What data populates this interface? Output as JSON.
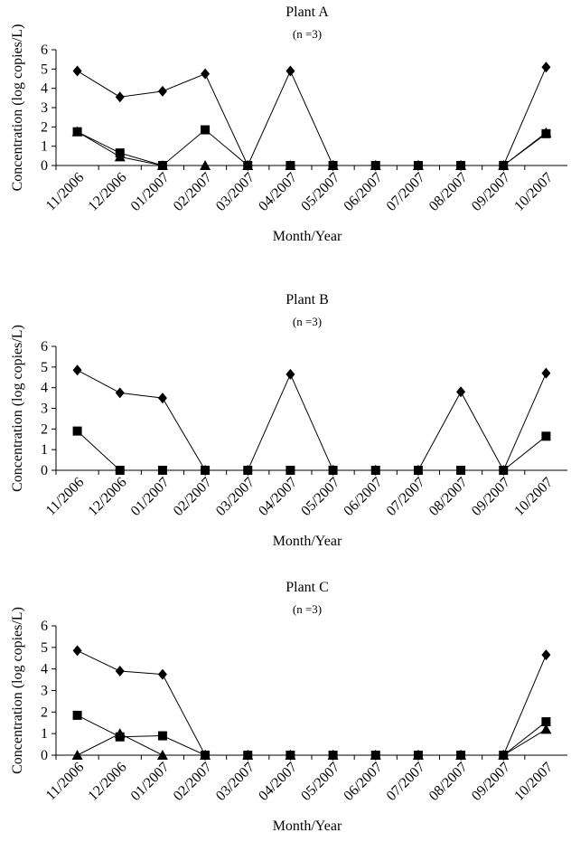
{
  "chart_data": [
    {
      "type": "line",
      "title": "Plant A",
      "subtitle": "(n =3)",
      "x_label": "Month/Year",
      "y_label": "Concentration (log copies/L)",
      "categories": [
        "11/2006",
        "12/2006",
        "01/2007",
        "02/2007",
        "03/2007",
        "04/2007",
        "05/2007",
        "06/2007",
        "07/2007",
        "08/2007",
        "09/2007",
        "10/2007"
      ],
      "ylim": [
        0,
        6
      ],
      "yticks": [
        0,
        1,
        2,
        3,
        4,
        5,
        6
      ],
      "series": [
        {
          "marker": "diamond",
          "color": "#000000",
          "values": [
            4.9,
            3.55,
            3.85,
            4.75,
            0,
            4.9,
            0,
            0,
            0,
            0,
            0,
            5.1
          ]
        },
        {
          "marker": "square",
          "color": "#000000",
          "values": [
            1.75,
            0.65,
            0,
            1.85,
            0,
            0,
            0,
            0,
            0,
            0,
            0,
            1.65
          ]
        },
        {
          "marker": "triangle",
          "color": "#000000",
          "values": [
            1.75,
            0.45,
            0,
            0,
            0,
            0,
            0,
            0,
            0,
            0,
            0,
            1.7
          ]
        }
      ]
    },
    {
      "type": "line",
      "title": "Plant B",
      "subtitle": "(n =3)",
      "x_label": "Month/Year",
      "y_label": "Concentration (log copies/L)",
      "categories": [
        "11/2006",
        "12/2006",
        "01/2007",
        "02/2007",
        "03/2007",
        "04/2007",
        "05/2007",
        "06/2007",
        "07/2007",
        "08/2007",
        "09/2007",
        "10/2007"
      ],
      "ylim": [
        0,
        6
      ],
      "yticks": [
        0,
        1,
        2,
        3,
        4,
        5,
        6
      ],
      "series": [
        {
          "marker": "diamond",
          "color": "#000000",
          "values": [
            4.85,
            3.75,
            3.5,
            0,
            0,
            4.65,
            0,
            0,
            0,
            3.8,
            0,
            4.7
          ]
        },
        {
          "marker": "square",
          "color": "#000000",
          "values": [
            1.9,
            0,
            0,
            0,
            0,
            0,
            0,
            0,
            0,
            0,
            0,
            1.65
          ]
        }
      ]
    },
    {
      "type": "line",
      "title": "Plant C",
      "subtitle": "(n =3)",
      "x_label": "Month/Year",
      "y_label": "Concentration (log copies/L)",
      "categories": [
        "11/2006",
        "12/2006",
        "01/2007",
        "02/2007",
        "03/2007",
        "04/2007",
        "05/2007",
        "06/2007",
        "07/2007",
        "08/2007",
        "09/2007",
        "10/2007"
      ],
      "ylim": [
        0,
        6
      ],
      "yticks": [
        0,
        1,
        2,
        3,
        4,
        5,
        6
      ],
      "series": [
        {
          "marker": "diamond",
          "color": "#000000",
          "values": [
            4.85,
            3.9,
            3.75,
            0,
            0,
            0,
            0,
            0,
            0,
            0,
            0,
            4.65
          ]
        },
        {
          "marker": "square",
          "color": "#000000",
          "values": [
            1.85,
            0.85,
            0.9,
            0,
            0,
            0,
            0,
            0,
            0,
            0,
            0,
            1.55
          ]
        },
        {
          "marker": "triangle",
          "color": "#000000",
          "values": [
            0,
            1.0,
            0,
            0,
            0,
            0,
            0,
            0,
            0,
            0,
            0,
            1.2
          ]
        }
      ]
    }
  ]
}
